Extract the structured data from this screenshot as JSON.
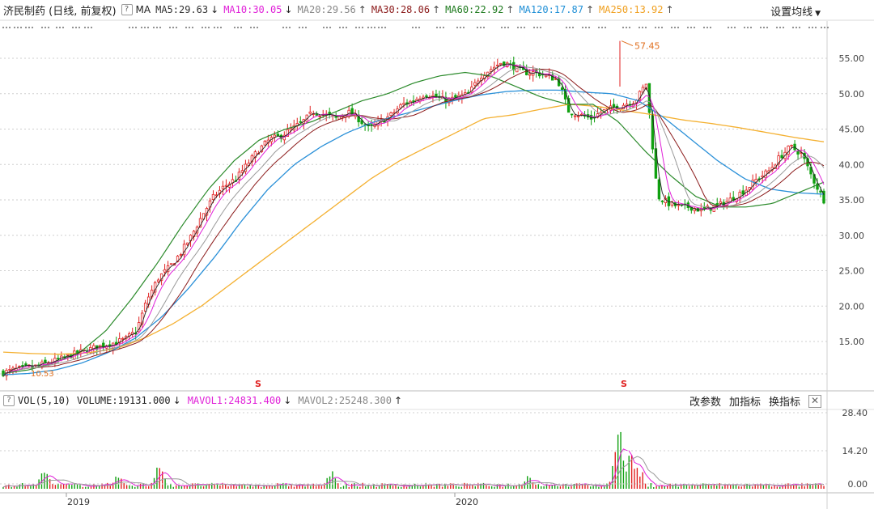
{
  "header": {
    "title": "济民制药 (日线, 前复权)",
    "help_glyph": "?",
    "ma_label": "MA",
    "ma_items": [
      {
        "label": "MA5:29.63",
        "arrow": "↓",
        "color": "#333333",
        "arrow_color": "#222222"
      },
      {
        "label": "MA10:30.05",
        "arrow": "↓",
        "color": "#e020d8",
        "arrow_color": "#222222"
      },
      {
        "label": "MA20:29.56",
        "arrow": "↑",
        "color": "#888888",
        "arrow_color": "#444444"
      },
      {
        "label": "MA30:28.06",
        "arrow": "↑",
        "color": "#8b1a1a",
        "arrow_color": "#444444"
      },
      {
        "label": "MA60:22.92",
        "arrow": "↑",
        "color": "#1e7a1e",
        "arrow_color": "#444444"
      },
      {
        "label": "MA120:17.87",
        "arrow": "↑",
        "color": "#1f8fd6",
        "arrow_color": "#444444"
      },
      {
        "label": "MA250:13.92",
        "arrow": "↑",
        "color": "#f0a020",
        "arrow_color": "#444444"
      }
    ],
    "settings_label": "设置均线",
    "settings_caret": "▼"
  },
  "price_axis": {
    "ticks": [
      "55.00",
      "50.00",
      "45.00",
      "40.00",
      "35.00",
      "30.00",
      "25.00",
      "20.00",
      "15.00"
    ]
  },
  "annotations": {
    "peak_label": "57.45",
    "left_low_label": "10.53",
    "marker_symbol": "S"
  },
  "volume_header": {
    "help_glyph": "?",
    "indicator": "VOL(5,10)",
    "volume": "VOLUME:19131.000",
    "volume_arrow": "↓",
    "mavol1": "MAVOL1:24831.400",
    "mavol1_arrow": "↓",
    "mavol2": "MAVOL2:25248.300",
    "mavol2_arrow": "↑",
    "btn_change_params": "改参数",
    "btn_add_indicator": "加指标",
    "btn_switch_indicator": "换指标",
    "close_glyph": "✕"
  },
  "volume_axis": {
    "ticks": [
      "28.40",
      "14.20",
      "0.00"
    ]
  },
  "time_axis": {
    "labels": [
      "2019",
      "2020"
    ]
  },
  "colors": {
    "ma5": "#222222",
    "ma10": "#e020d8",
    "ma20": "#9a9a9a",
    "ma30": "#8b1a1a",
    "ma60": "#2a8a2a",
    "ma120": "#2a90d8",
    "ma250": "#f4b030",
    "up": "#e02020",
    "down": "#10a010",
    "grid": "#cfcfcf",
    "peak": "#e07020"
  },
  "chart_data": {
    "type": "candlestick",
    "title": "济民制药 (日线, 前复权)",
    "x_labels": [
      "2019",
      "2020"
    ],
    "y_ticks": [
      55,
      50,
      45,
      40,
      35,
      30,
      25,
      20,
      15
    ],
    "close_path": [
      10.6,
      11.0,
      11.3,
      11.5,
      12.0,
      12.4,
      13.0,
      13.5,
      14.0,
      14.5,
      14.8,
      15.3,
      16.5,
      21.0,
      24.0,
      25.5,
      27.5,
      30.0,
      33.0,
      35.5,
      37.0,
      38.0,
      40.0,
      42.0,
      43.5,
      44.0,
      45.0,
      46.0,
      47.5,
      47.0,
      46.5,
      47.5,
      46.5,
      45.0,
      46.0,
      47.0,
      48.5,
      49.0,
      50.0,
      49.5,
      49.0,
      49.5,
      50.0,
      52.5,
      53.5,
      54.5,
      53.8,
      53.0,
      53.0,
      52.5,
      52.0,
      47.5,
      47.0,
      46.5,
      47.5,
      48.0,
      48.5,
      49.0,
      51.5,
      35.5,
      34.5,
      34.0,
      34.0,
      33.5,
      34.0,
      34.5,
      35.5,
      36.5,
      38.0,
      39.0,
      41.0,
      42.5,
      41.5,
      38.0,
      35.0
    ],
    "ma250_path": [
      13.5,
      13.3,
      13.2,
      13.4,
      14.0,
      15.5,
      17.5,
      20.0,
      23.0,
      26.0,
      29.0,
      32.0,
      35.0,
      38.0,
      40.5,
      42.5,
      44.5,
      46.5,
      47.0,
      47.8,
      48.5,
      48.2,
      47.6,
      47.0,
      46.3,
      45.8,
      45.2,
      44.5,
      43.8,
      43.2
    ],
    "ma120_path": [
      10.3,
      10.5,
      11.0,
      12.0,
      13.5,
      15.5,
      18.5,
      22.5,
      27.0,
      32.0,
      36.5,
      40.0,
      42.5,
      44.5,
      46.0,
      47.0,
      48.0,
      49.0,
      49.8,
      50.3,
      50.5,
      50.5,
      50.2,
      50.0,
      49.0,
      46.5,
      43.5,
      40.5,
      38.0,
      36.5,
      36.0,
      35.8
    ],
    "ma60_path": [
      10.5,
      11.0,
      12.0,
      13.5,
      16.5,
      21.0,
      26.0,
      31.5,
      36.5,
      40.5,
      43.5,
      45.0,
      46.0,
      47.5,
      49.0,
      50.0,
      51.5,
      52.5,
      53.0,
      52.5,
      51.0,
      49.5,
      48.5,
      48.5,
      46.0,
      42.0,
      38.5,
      35.5,
      34.0,
      34.0,
      34.5,
      36.0,
      37.5
    ],
    "peak_value": 57.45,
    "left_low_value": 10.53,
    "volume_y_ticks": [
      28.4,
      14.2,
      0.0
    ],
    "volume_spikes": [
      {
        "x_frac": 0.05,
        "value": 8.5
      },
      {
        "x_frac": 0.14,
        "value": 6.0
      },
      {
        "x_frac": 0.19,
        "value": 11.0
      },
      {
        "x_frac": 0.4,
        "value": 7.5
      },
      {
        "x_frac": 0.64,
        "value": 6.0
      },
      {
        "x_frac": 0.75,
        "value": 28.4
      },
      {
        "x_frac": 0.765,
        "value": 16.0
      }
    ]
  }
}
